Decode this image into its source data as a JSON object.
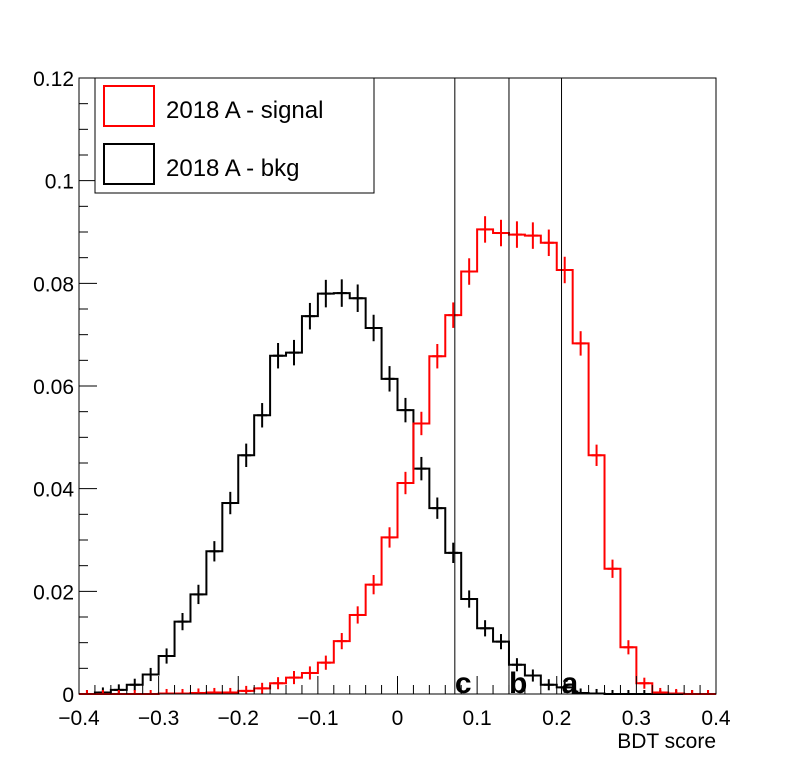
{
  "chart_data": {
    "type": "histogram-step",
    "title": "",
    "xlabel": "BDT score",
    "ylabel": "",
    "xlim": [
      -0.4,
      0.4
    ],
    "ylim": [
      0,
      0.12
    ],
    "x_ticks": [
      -0.4,
      -0.3,
      -0.2,
      -0.1,
      0,
      0.1,
      0.2,
      0.3,
      0.4
    ],
    "x_tick_labels": [
      "−0.4",
      "−0.3",
      "−0.2",
      "−0.1",
      "0",
      "0.1",
      "0.2",
      "0.3",
      "0.4"
    ],
    "y_ticks": [
      0,
      0.02,
      0.04,
      0.06,
      0.08,
      0.1,
      0.12
    ],
    "y_tick_labels": [
      "0",
      "0.02",
      "0.04",
      "0.06",
      "0.08",
      "0.1",
      "0.12"
    ],
    "bin_edges": [
      -0.4,
      -0.38,
      -0.36,
      -0.34,
      -0.32,
      -0.3,
      -0.28,
      -0.26,
      -0.24,
      -0.22,
      -0.2,
      -0.18,
      -0.16,
      -0.14,
      -0.12,
      -0.1,
      -0.08,
      -0.06,
      -0.04,
      -0.02,
      0.0,
      0.02,
      0.04,
      0.06,
      0.08,
      0.1,
      0.12,
      0.14,
      0.16,
      0.18,
      0.2,
      0.22,
      0.24,
      0.26,
      0.28,
      0.3,
      0.32,
      0.34,
      0.36,
      0.38,
      0.4
    ],
    "series": [
      {
        "name": "2018 A - bkg",
        "color": "#000000",
        "values": [
          0.0,
          0.0003,
          0.0008,
          0.0018,
          0.0038,
          0.0074,
          0.0141,
          0.0194,
          0.0278,
          0.0372,
          0.0465,
          0.0543,
          0.0659,
          0.0665,
          0.0736,
          0.078,
          0.0781,
          0.0771,
          0.0713,
          0.0614,
          0.0553,
          0.0439,
          0.0362,
          0.0275,
          0.0185,
          0.0128,
          0.0102,
          0.0057,
          0.0036,
          0.0018,
          0.0013,
          0.0002,
          0.0001,
          0.0,
          0.0,
          0.0,
          0.0,
          0.0,
          0.0,
          0.0
        ],
        "errors": [
          0.0,
          0.0002,
          0.0003,
          0.0004,
          0.0005,
          0.0007,
          0.0009,
          0.0011,
          0.0012,
          0.0014,
          0.0015,
          0.0016,
          0.0017,
          0.0017,
          0.0018,
          0.0019,
          0.0019,
          0.0019,
          0.0018,
          0.0017,
          0.0016,
          0.0015,
          0.0013,
          0.0012,
          0.0009,
          0.0008,
          0.0007,
          0.0005,
          0.0004,
          0.0003,
          0.0003,
          0.0001,
          0.0001,
          0.0,
          0.0,
          0.0,
          0.0,
          0.0,
          0.0,
          0.0
        ]
      },
      {
        "name": "2018 A - signal",
        "color": "#ff0000",
        "values": [
          0.0,
          0.0,
          0.0,
          0.0,
          0.0,
          0.0001,
          0.0001,
          0.0002,
          0.0003,
          0.0003,
          0.0006,
          0.0011,
          0.0021,
          0.0032,
          0.0041,
          0.0061,
          0.0103,
          0.0154,
          0.0213,
          0.0305,
          0.0411,
          0.0527,
          0.0658,
          0.0738,
          0.0823,
          0.0905,
          0.0898,
          0.0895,
          0.0893,
          0.0879,
          0.0826,
          0.0683,
          0.0465,
          0.0244,
          0.0091,
          0.0021,
          0.0003,
          0.0001,
          0.0,
          0.0
        ],
        "errors": [
          0.0,
          0.0,
          0.0,
          0.0,
          0.0,
          0.0001,
          0.0001,
          0.0001,
          0.0001,
          0.0001,
          0.0002,
          0.0003,
          0.0004,
          0.0005,
          0.0005,
          0.0006,
          0.0008,
          0.0009,
          0.0011,
          0.0012,
          0.0014,
          0.0015,
          0.0016,
          0.0017,
          0.0018,
          0.0018,
          0.0018,
          0.0018,
          0.0018,
          0.0018,
          0.0018,
          0.0016,
          0.0013,
          0.001,
          0.0006,
          0.0003,
          0.0001,
          0.0001,
          0.0,
          0.0
        ]
      }
    ],
    "vertical_lines": [
      {
        "label": "c",
        "x": 0.072
      },
      {
        "label": "b",
        "x": 0.14
      },
      {
        "label": "a",
        "x": 0.206
      }
    ],
    "legend": {
      "placement": "top-left",
      "entries": [
        {
          "label": "2018 A - signal",
          "color": "#ff0000"
        },
        {
          "label": "2018 A - bkg",
          "color": "#000000"
        }
      ]
    },
    "grid": false
  }
}
